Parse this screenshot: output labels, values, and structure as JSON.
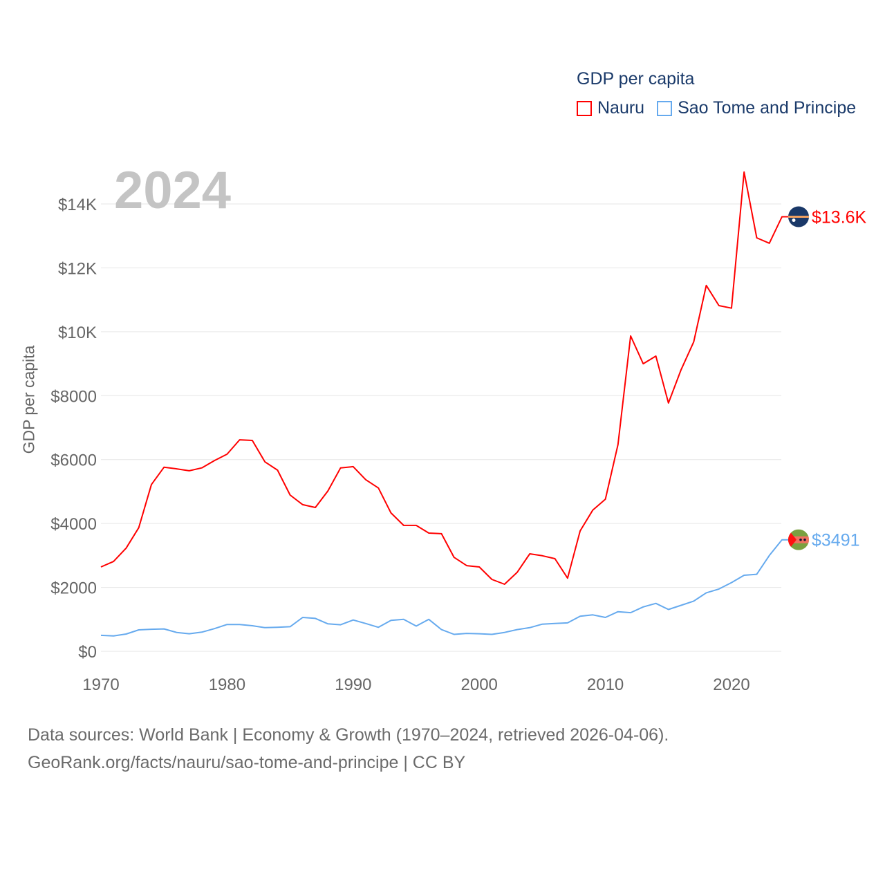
{
  "chart_data": {
    "type": "line",
    "title": "GDP per capita",
    "ylabel": "GDP per capita",
    "xlabel": "",
    "year_label": "2024",
    "xlim": [
      1970,
      2024
    ],
    "ylim": [
      0,
      14000
    ],
    "x_ticks": [
      1970,
      1980,
      1990,
      2000,
      2010,
      2020
    ],
    "y_ticks": [
      0,
      2000,
      4000,
      6000,
      8000,
      10000,
      12000,
      14000
    ],
    "y_tick_labels": [
      "$0",
      "$2000",
      "$4000",
      "$6000",
      "$8000",
      "$10K",
      "$12K",
      "$14K"
    ],
    "grid": true,
    "legend_position": "top-right",
    "x": [
      1970,
      1971,
      1972,
      1973,
      1974,
      1975,
      1976,
      1977,
      1978,
      1979,
      1980,
      1981,
      1982,
      1983,
      1984,
      1985,
      1986,
      1987,
      1988,
      1989,
      1990,
      1991,
      1992,
      1993,
      1994,
      1995,
      1996,
      1997,
      1998,
      1999,
      2000,
      2001,
      2002,
      2003,
      2004,
      2005,
      2006,
      2007,
      2008,
      2009,
      2010,
      2011,
      2012,
      2013,
      2014,
      2015,
      2016,
      2017,
      2018,
      2019,
      2020,
      2021,
      2022,
      2023,
      2024
    ],
    "series": [
      {
        "name": "Nauru",
        "color": "#ff0000",
        "end_label": "$13.6K",
        "flag": "nauru-flag",
        "values": [
          2640,
          2810,
          3230,
          3870,
          5220,
          5760,
          5710,
          5650,
          5740,
          5970,
          6170,
          6620,
          6600,
          5930,
          5670,
          4890,
          4590,
          4500,
          5020,
          5740,
          5780,
          5370,
          5110,
          4330,
          3940,
          3940,
          3700,
          3680,
          2940,
          2680,
          2640,
          2250,
          2100,
          2470,
          3050,
          2990,
          2900,
          2290,
          3770,
          4420,
          4760,
          6470,
          9870,
          9000,
          9240,
          7770,
          8810,
          9680,
          11450,
          10820,
          10740,
          15000,
          12940,
          12770,
          13600
        ]
      },
      {
        "name": "Sao Tome and Principe",
        "color": "#66aaee",
        "end_label": "$3491",
        "flag": "sao-tome-flag",
        "values": [
          500,
          480,
          540,
          670,
          690,
          700,
          590,
          550,
          600,
          710,
          840,
          840,
          800,
          740,
          750,
          770,
          1060,
          1030,
          860,
          830,
          980,
          870,
          750,
          970,
          1000,
          790,
          1000,
          680,
          530,
          560,
          550,
          530,
          590,
          680,
          740,
          850,
          870,
          890,
          1100,
          1140,
          1060,
          1240,
          1210,
          1390,
          1500,
          1310,
          1440,
          1570,
          1830,
          1950,
          2150,
          2380,
          2410,
          3000,
          3491
        ]
      }
    ]
  },
  "footer": {
    "line1": "Data sources: World Bank | Economy & Growth (1970–2024, retrieved 2026-04-06).",
    "line2": "GeoRank.org/facts/nauru/sao-tome-and-principe | CC BY"
  }
}
